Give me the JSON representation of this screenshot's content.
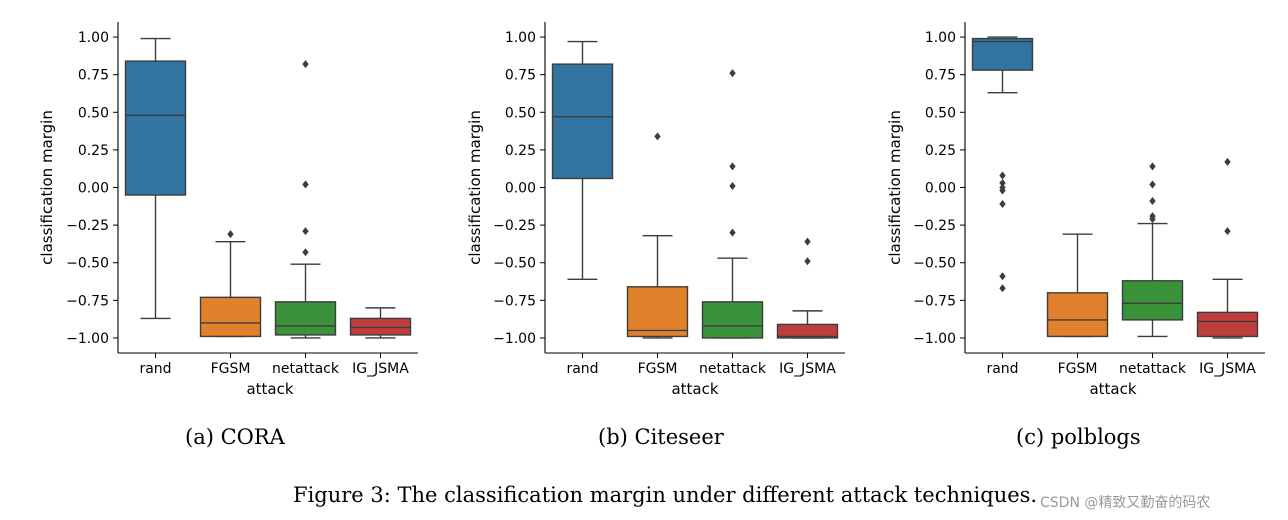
{
  "chart_data": [
    {
      "type": "box",
      "caption": "(a) CORA",
      "xlabel": "attack",
      "ylabel": "classification margin",
      "ylim": [
        -1.1,
        1.1
      ],
      "yticks": [
        1.0,
        0.75,
        0.5,
        0.25,
        0.0,
        -0.25,
        -0.5,
        -0.75,
        -1.0
      ],
      "ytick_labels": [
        "1.00",
        "0.75",
        "0.50",
        "0.25",
        "0.00",
        "−0.25",
        "−0.50",
        "−0.75",
        "−1.00"
      ],
      "categories": [
        "rand",
        "FGSM",
        "netattack",
        "IG_JSMA"
      ],
      "boxes": [
        {
          "name": "rand",
          "color": "#3274a1",
          "whisker_low": -0.87,
          "q1": -0.05,
          "median": 0.48,
          "q3": 0.84,
          "whisker_high": 0.99,
          "outliers": []
        },
        {
          "name": "FGSM",
          "color": "#e1812c",
          "whisker_low": -0.99,
          "q1": -0.99,
          "median": -0.9,
          "q3": -0.73,
          "whisker_high": -0.36,
          "outliers": [
            -0.31
          ]
        },
        {
          "name": "netattack",
          "color": "#3a923a",
          "whisker_low": -1.0,
          "q1": -0.98,
          "median": -0.92,
          "q3": -0.76,
          "whisker_high": -0.51,
          "outliers": [
            0.82,
            0.02,
            -0.29,
            -0.43
          ]
        },
        {
          "name": "IG_JSMA",
          "color": "#c03d3e",
          "whisker_low": -1.0,
          "q1": -0.98,
          "median": -0.93,
          "q3": -0.87,
          "whisker_high": -0.8,
          "outliers": []
        }
      ]
    },
    {
      "type": "box",
      "caption": "(b) Citeseer",
      "xlabel": "attack",
      "ylabel": "classification margin",
      "ylim": [
        -1.1,
        1.1
      ],
      "yticks": [
        1.0,
        0.75,
        0.5,
        0.25,
        0.0,
        -0.25,
        -0.5,
        -0.75,
        -1.0
      ],
      "ytick_labels": [
        "1.00",
        "0.75",
        "0.50",
        "0.25",
        "0.00",
        "−0.25",
        "−0.50",
        "−0.75",
        "−1.00"
      ],
      "categories": [
        "rand",
        "FGSM",
        "netattack",
        "IG_JSMA"
      ],
      "boxes": [
        {
          "name": "rand",
          "color": "#3274a1",
          "whisker_low": -0.61,
          "q1": 0.06,
          "median": 0.47,
          "q3": 0.82,
          "whisker_high": 0.97,
          "outliers": []
        },
        {
          "name": "FGSM",
          "color": "#e1812c",
          "whisker_low": -1.0,
          "q1": -0.99,
          "median": -0.95,
          "q3": -0.66,
          "whisker_high": -0.32,
          "outliers": [
            0.34
          ]
        },
        {
          "name": "netattack",
          "color": "#3a923a",
          "whisker_low": -1.0,
          "q1": -1.0,
          "median": -0.92,
          "q3": -0.76,
          "whisker_high": -0.47,
          "outliers": [
            0.76,
            0.14,
            0.01,
            -0.3
          ]
        },
        {
          "name": "IG_JSMA",
          "color": "#c03d3e",
          "whisker_low": -1.0,
          "q1": -1.0,
          "median": -0.99,
          "q3": -0.91,
          "whisker_high": -0.82,
          "outliers": [
            -0.36,
            -0.49
          ]
        }
      ]
    },
    {
      "type": "box",
      "caption": "(c) polblogs",
      "xlabel": "attack",
      "ylabel": "classification margin",
      "ylim": [
        -1.1,
        1.1
      ],
      "yticks": [
        1.0,
        0.75,
        0.5,
        0.25,
        0.0,
        -0.25,
        -0.5,
        -0.75,
        -1.0
      ],
      "ytick_labels": [
        "1.00",
        "0.75",
        "0.50",
        "0.25",
        "0.00",
        "−0.25",
        "−0.50",
        "−0.75",
        "−1.00"
      ],
      "categories": [
        "rand",
        "FGSM",
        "netattack",
        "IG_JSMA"
      ],
      "boxes": [
        {
          "name": "rand",
          "color": "#3274a1",
          "whisker_low": 0.63,
          "q1": 0.78,
          "median": 0.97,
          "q3": 0.99,
          "whisker_high": 1.0,
          "outliers": [
            0.08,
            0.03,
            0.0,
            -0.02,
            -0.11,
            -0.59,
            -0.67
          ]
        },
        {
          "name": "FGSM",
          "color": "#e1812c",
          "whisker_low": -0.99,
          "q1": -0.99,
          "median": -0.88,
          "q3": -0.7,
          "whisker_high": -0.31,
          "outliers": []
        },
        {
          "name": "netattack",
          "color": "#3a923a",
          "whisker_low": -0.99,
          "q1": -0.88,
          "median": -0.77,
          "q3": -0.62,
          "whisker_high": -0.24,
          "outliers": [
            0.14,
            0.02,
            -0.09,
            -0.19,
            -0.21
          ]
        },
        {
          "name": "IG_JSMA",
          "color": "#c03d3e",
          "whisker_low": -1.0,
          "q1": -0.99,
          "median": -0.89,
          "q3": -0.83,
          "whisker_high": -0.61,
          "outliers": [
            0.17,
            -0.29
          ]
        }
      ]
    }
  ],
  "figure_caption": "Figure 3: The classification margin under different attack techniques.",
  "watermark": "CSDN @精致又勤奋的码农"
}
